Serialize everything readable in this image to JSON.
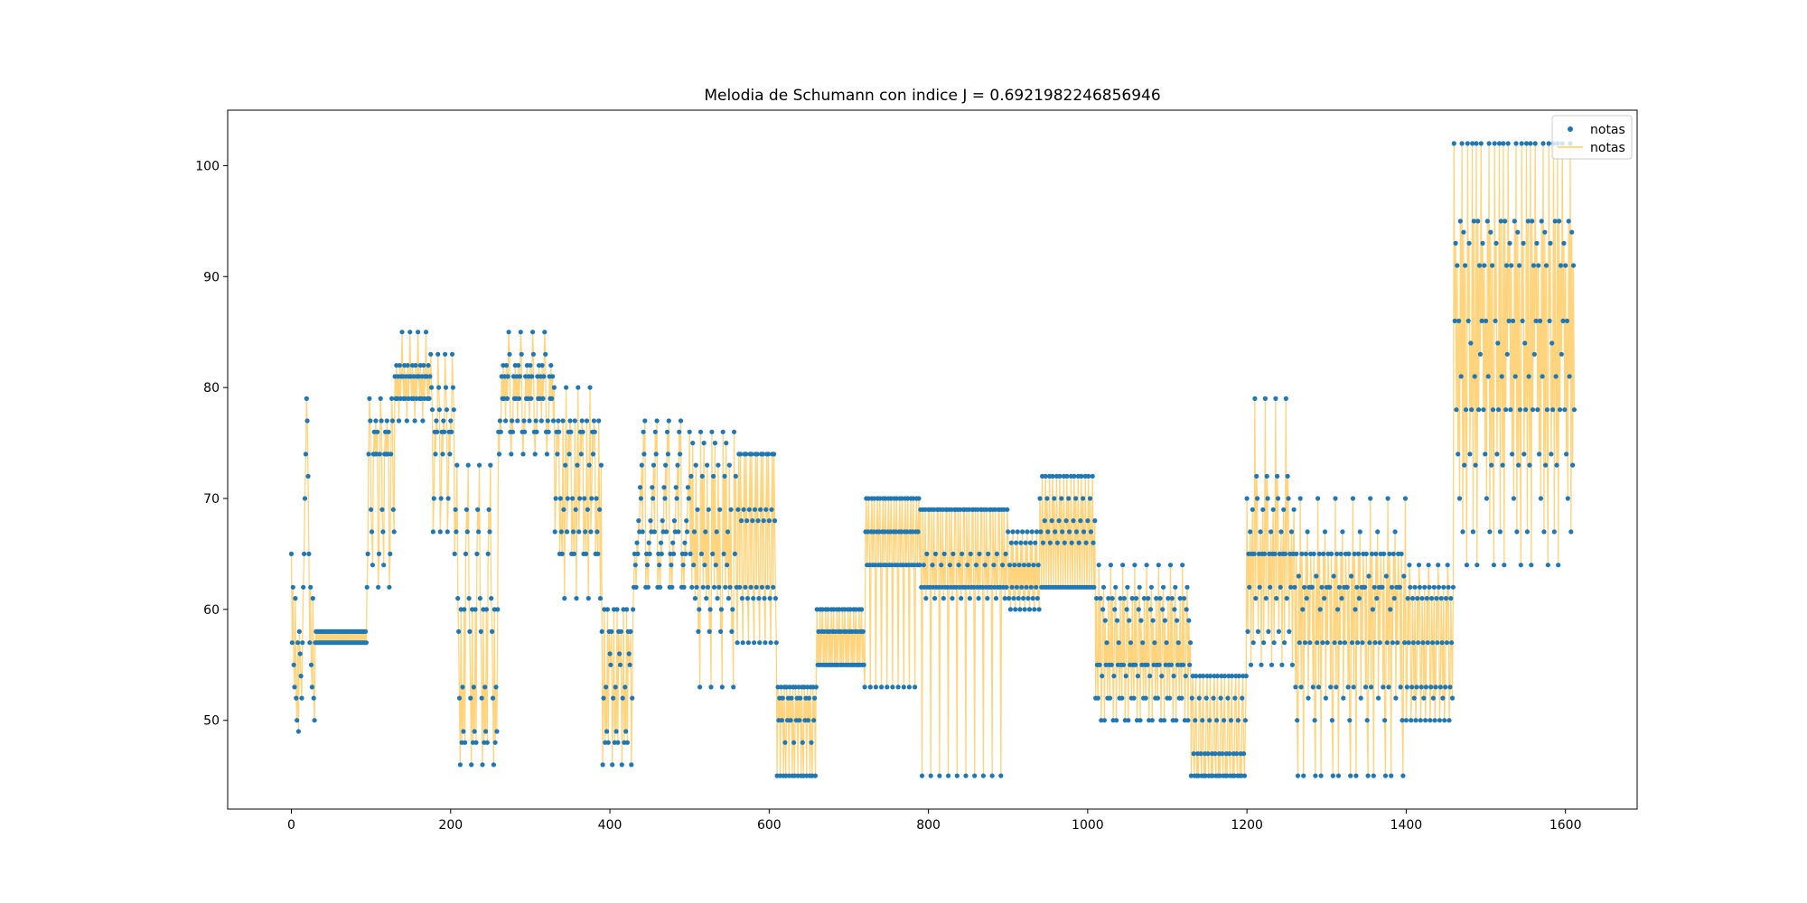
{
  "chart_data": {
    "type": "line",
    "title": "Melodia de Schumann con indice J = 0.6921982246856946",
    "xlabel": "",
    "ylabel": "",
    "xlim": [
      -80,
      1690
    ],
    "ylim": [
      42,
      105
    ],
    "xticks": [
      0,
      200,
      400,
      600,
      800,
      1000,
      1200,
      1400,
      1600
    ],
    "yticks": [
      50,
      60,
      70,
      80,
      90,
      100
    ],
    "grid": false,
    "legend": {
      "placement": "top-right",
      "entries": [
        "notas",
        "notas"
      ]
    },
    "colors": {
      "points": "#1f77b4",
      "line": "#ffcc66",
      "axes": "#000000"
    },
    "segments": [
      {
        "x0": 0,
        "x1": 30,
        "pattern": [
          65,
          57,
          62,
          55,
          53,
          61,
          52,
          50,
          57,
          49,
          58,
          56,
          54,
          52,
          57,
          62,
          65,
          70,
          74,
          79,
          77,
          72
        ]
      },
      {
        "x0": 30,
        "x1": 95,
        "pattern": [
          57,
          58,
          57,
          58,
          57,
          58
        ]
      },
      {
        "x0": 95,
        "x1": 130,
        "pattern": [
          62,
          65,
          74,
          79,
          77,
          69,
          67,
          64,
          74,
          76,
          74,
          77,
          74,
          76
        ]
      },
      {
        "x0": 130,
        "x1": 175,
        "pattern": [
          81,
          79,
          82,
          79,
          81,
          77,
          82,
          79,
          81,
          85
        ]
      },
      {
        "x0": 175,
        "x1": 205,
        "pattern": [
          83,
          80,
          78,
          67,
          70,
          76,
          74,
          77,
          76
        ]
      },
      {
        "x0": 205,
        "x1": 260,
        "pattern": [
          65,
          69,
          67,
          73,
          61,
          58,
          52,
          46,
          60,
          48,
          53,
          49,
          60,
          48
        ]
      },
      {
        "x0": 260,
        "x1": 330,
        "pattern": [
          76,
          74,
          77,
          76,
          81,
          79,
          82,
          79,
          81,
          77,
          82,
          79,
          81,
          85,
          83
        ]
      },
      {
        "x0": 330,
        "x1": 390,
        "pattern": [
          80,
          67,
          70,
          76,
          74,
          77,
          76,
          65,
          70,
          67,
          65,
          77,
          69,
          61,
          73
        ]
      },
      {
        "x0": 390,
        "x1": 430,
        "pattern": [
          58,
          46,
          52,
          60,
          48,
          53,
          49,
          60,
          48,
          58,
          56,
          55
        ]
      },
      {
        "x0": 430,
        "x1": 500,
        "pattern": [
          62,
          65,
          64,
          62,
          66,
          65,
          68,
          67,
          71,
          70,
          73,
          67,
          76,
          74,
          77
        ]
      },
      {
        "x0": 500,
        "x1": 560,
        "pattern": [
          76,
          65,
          72,
          62,
          75,
          64,
          67,
          61,
          73,
          62,
          69,
          58,
          60,
          53
        ]
      },
      {
        "x0": 560,
        "x1": 610,
        "pattern": [
          57,
          69,
          74,
          62,
          74,
          68,
          61
        ]
      },
      {
        "x0": 610,
        "x1": 660,
        "pattern": [
          45,
          53,
          50,
          52,
          45,
          53,
          50,
          52,
          45,
          53,
          48
        ]
      },
      {
        "x0": 660,
        "x1": 720,
        "pattern": [
          60,
          55,
          58,
          55,
          60,
          55,
          58
        ]
      },
      {
        "x0": 720,
        "x1": 790,
        "pattern": [
          53,
          67,
          70,
          64,
          67,
          70,
          64
        ]
      },
      {
        "x0": 790,
        "x1": 900,
        "pattern": [
          69,
          62,
          45,
          69,
          64,
          62,
          69,
          61,
          65,
          62,
          69
        ]
      },
      {
        "x0": 900,
        "x1": 940,
        "pattern": [
          67,
          61,
          64,
          60,
          66,
          62
        ]
      },
      {
        "x0": 940,
        "x1": 1010,
        "pattern": [
          70,
          67,
          62,
          72,
          66,
          62,
          68,
          72,
          62
        ]
      },
      {
        "x0": 1010,
        "x1": 1130,
        "pattern": [
          52,
          61,
          55,
          52,
          64,
          55,
          61,
          50,
          54,
          60,
          62,
          50,
          59,
          55,
          57
        ]
      },
      {
        "x0": 1130,
        "x1": 1200,
        "pattern": [
          45,
          52,
          54,
          47,
          45,
          50,
          54,
          45,
          47
        ]
      },
      {
        "x0": 1200,
        "x1": 1260,
        "pattern": [
          70,
          58,
          65,
          62,
          67,
          55,
          65,
          69,
          57,
          65,
          79,
          61,
          72
        ]
      },
      {
        "x0": 1260,
        "x1": 1400,
        "pattern": [
          62,
          53,
          65,
          50,
          45,
          63,
          57,
          70,
          53,
          65,
          60,
          45,
          62,
          57,
          65,
          61,
          67,
          52,
          62,
          57,
          65,
          62
        ]
      },
      {
        "x0": 1400,
        "x1": 1460,
        "pattern": [
          50,
          53,
          61,
          57,
          64,
          62,
          50,
          53,
          61,
          57,
          52,
          62
        ]
      },
      {
        "x0": 1460,
        "x1": 1612,
        "pattern": [
          102,
          86,
          93,
          78,
          91,
          74,
          86,
          70,
          95,
          81,
          102,
          67,
          94,
          73,
          91,
          78,
          64,
          102,
          86,
          93,
          74,
          84,
          78,
          102,
          67,
          95,
          81,
          73,
          102,
          64,
          95,
          78,
          91,
          83
        ]
      }
    ]
  }
}
